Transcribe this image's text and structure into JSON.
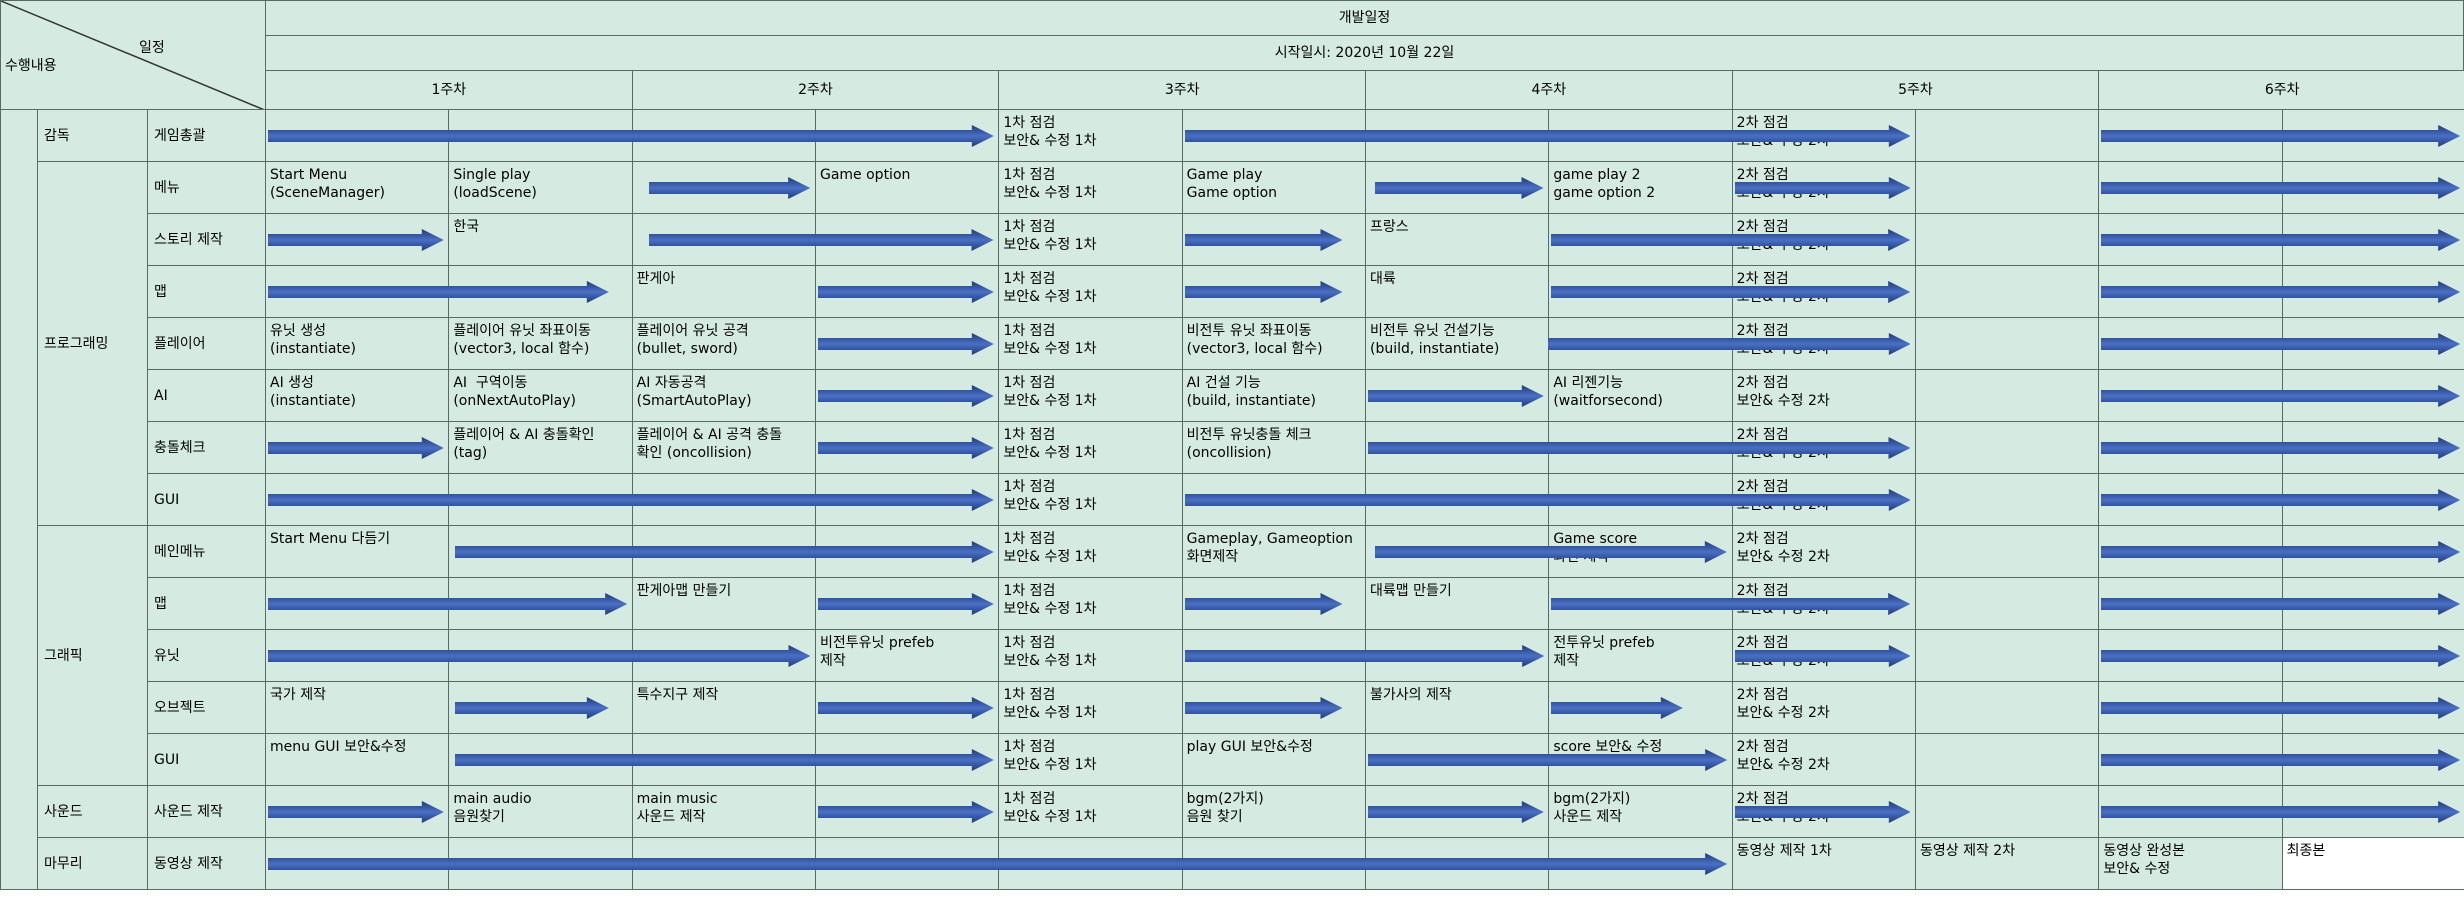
{
  "header": {
    "corner_task": "수행내용",
    "corner_schedule": "일정",
    "title": "개발일정",
    "start_date": "시작일시: 2020년 10월 22일",
    "weeks": [
      "1주차",
      "2주차",
      "3주차",
      "4주차",
      "5주차",
      "6주차"
    ]
  },
  "colors": {
    "cell_bg": "#d5ebe1",
    "grid": "#5a6a64",
    "arrow_dark": "#1f3b7a",
    "arrow_light": "#4a6fc4"
  },
  "groups": [
    {
      "label": "감독",
      "rows": 1
    },
    {
      "label": "프로그래밍",
      "rows": 7
    },
    {
      "label": "그래픽",
      "rows": 5
    },
    {
      "label": "사운드",
      "rows": 1
    },
    {
      "label": "마무리",
      "rows": 1
    }
  ],
  "rows": [
    {
      "label": "게임총괄",
      "tasks": [
        {
          "col": 4,
          "text": "1차 점검\n보안& 수정 1차"
        },
        {
          "col": 8,
          "text": "2차 점검\n보안& 수정 2차"
        }
      ],
      "arrows": [
        [
          0,
          3.97
        ],
        [
          5,
          8.97
        ],
        [
          10,
          11.97
        ]
      ]
    },
    {
      "label": "메뉴",
      "tasks": [
        {
          "col": 0,
          "text": "Start Menu\n(SceneManager)"
        },
        {
          "col": 1,
          "text": "Single play\n(loadScene)"
        },
        {
          "col": 3,
          "text": "Game option"
        },
        {
          "col": 4,
          "text": "1차 점검\n보안& 수정 1차"
        },
        {
          "col": 5,
          "text": "Game play\nGame option"
        },
        {
          "col": 7,
          "text": "game play 2\ngame option 2"
        },
        {
          "col": 8,
          "text": "2차 점검\n보안& 수정 2차"
        }
      ],
      "arrows": [
        [
          2.08,
          2.97
        ],
        [
          6.04,
          6.97
        ],
        [
          8,
          8.97
        ],
        [
          10,
          11.97
        ]
      ]
    },
    {
      "label": "스토리 제작",
      "tasks": [
        {
          "col": 1,
          "text": "한국"
        },
        {
          "col": 4,
          "text": "1차 점검\n보안& 수정 1차"
        },
        {
          "col": 6,
          "text": "프랑스"
        },
        {
          "col": 8,
          "text": "2차 점검\n보안& 수정 2차"
        }
      ],
      "arrows": [
        [
          0,
          0.97
        ],
        [
          2.08,
          3.97
        ],
        [
          5,
          5.87
        ],
        [
          7,
          8.97
        ],
        [
          10,
          11.97
        ]
      ]
    },
    {
      "label": "맵",
      "tasks": [
        {
          "col": 2,
          "text": "판게아"
        },
        {
          "col": 4,
          "text": "1차 점검\n보안& 수정 1차"
        },
        {
          "col": 6,
          "text": "대륙"
        },
        {
          "col": 8,
          "text": "2차 점검\n보안& 수정 2차"
        }
      ],
      "arrows": [
        [
          0,
          1.87
        ],
        [
          3,
          3.97
        ],
        [
          5,
          5.87
        ],
        [
          7,
          8.97
        ],
        [
          10,
          11.97
        ]
      ]
    },
    {
      "label": "플레이어",
      "tasks": [
        {
          "col": 0,
          "text": "유닛 생성\n(instantiate)"
        },
        {
          "col": 1,
          "text": "플레이어 유닛 좌표이동\n(vector3, local 함수)"
        },
        {
          "col": 2,
          "text": "플레이어 유닛 공격\n(bullet, sword)"
        },
        {
          "col": 4,
          "text": "1차 점검\n보안& 수정 1차"
        },
        {
          "col": 5,
          "text": "비전투 유닛 좌표이동\n(vector3, local 함수)"
        },
        {
          "col": 6,
          "text": "비전투 유닛 건설기능\n(build, instantiate)"
        },
        {
          "col": 8,
          "text": "2차 점검\n보안& 수정 2차"
        }
      ],
      "arrows": [
        [
          3,
          3.97
        ],
        [
          6.98,
          8.97
        ],
        [
          10,
          11.97
        ]
      ]
    },
    {
      "label": "AI",
      "tasks": [
        {
          "col": 0,
          "text": "AI 생성\n(instantiate)"
        },
        {
          "col": 1,
          "text": "AI  구역이동\n(onNextAutoPlay)"
        },
        {
          "col": 2,
          "text": "AI 자동공격\n(SmartAutoPlay)"
        },
        {
          "col": 4,
          "text": "1차 점검\n보안& 수정 1차"
        },
        {
          "col": 5,
          "text": "AI 건설 기능\n(build, instantiate)"
        },
        {
          "col": 7,
          "text": "AI 리젠기능\n(waitforsecond)"
        },
        {
          "col": 8,
          "text": "2차 점검\n보안& 수정 2차"
        }
      ],
      "arrows": [
        [
          3,
          3.97
        ],
        [
          6,
          6.97
        ],
        [
          10,
          11.97
        ]
      ]
    },
    {
      "label": "충돌체크",
      "tasks": [
        {
          "col": 1,
          "text": "플레이어 & AI 충돌확인\n(tag)"
        },
        {
          "col": 2,
          "text": "플레이어 & AI 공격 충돌\n확인 (oncollision)"
        },
        {
          "col": 4,
          "text": "1차 점검\n보안& 수정 1차"
        },
        {
          "col": 5,
          "text": "비전투 유닛충돌 체크\n(oncollision)"
        },
        {
          "col": 8,
          "text": "2차 점검\n보안& 수정 2차"
        }
      ],
      "arrows": [
        [
          0,
          0.97
        ],
        [
          3,
          3.97
        ],
        [
          6,
          8.97
        ],
        [
          10,
          11.97
        ]
      ]
    },
    {
      "label": "GUI",
      "tasks": [
        {
          "col": 4,
          "text": "1차 점검\n보안& 수정 1차"
        },
        {
          "col": 8,
          "text": "2차 점검\n보안& 수정 2차"
        }
      ],
      "arrows": [
        [
          0,
          3.97
        ],
        [
          5,
          8.97
        ],
        [
          10,
          11.97
        ]
      ]
    },
    {
      "label": "메인메뉴",
      "tasks": [
        {
          "col": 0,
          "text": "Start Menu 다듬기"
        },
        {
          "col": 4,
          "text": "1차 점검\n보안& 수정 1차"
        },
        {
          "col": 5,
          "text": "Gameplay, Gameoption\n화면제작"
        },
        {
          "col": 7,
          "text": "Game score\n화면 제작"
        },
        {
          "col": 8,
          "text": "2차 점검\n보안& 수정 2차"
        }
      ],
      "arrows": [
        [
          1.02,
          3.97
        ],
        [
          6.04,
          7.97
        ],
        [
          10,
          11.97
        ]
      ]
    },
    {
      "label": "맵",
      "tasks": [
        {
          "col": 2,
          "text": "판게아맵 만들기"
        },
        {
          "col": 4,
          "text": "1차 점검\n보안& 수정 1차"
        },
        {
          "col": 6,
          "text": "대륙맵 만들기"
        },
        {
          "col": 8,
          "text": "2차 점검\n보안& 수정 2차"
        }
      ],
      "arrows": [
        [
          0,
          1.97
        ],
        [
          3,
          3.97
        ],
        [
          5,
          5.87
        ],
        [
          7,
          8.97
        ],
        [
          10,
          11.97
        ]
      ]
    },
    {
      "label": "유닛",
      "tasks": [
        {
          "col": 3,
          "text": "비전투유닛 prefeb\n제작"
        },
        {
          "col": 4,
          "text": "1차 점검\n보안& 수정 1차"
        },
        {
          "col": 7,
          "text": "전투유닛 prefeb\n제작"
        },
        {
          "col": 8,
          "text": "2차 점검\n보안& 수정 2차"
        }
      ],
      "arrows": [
        [
          0,
          2.97
        ],
        [
          5,
          6.97
        ],
        [
          8,
          8.97
        ],
        [
          10,
          11.97
        ]
      ]
    },
    {
      "label": "오브젝트",
      "tasks": [
        {
          "col": 0,
          "text": "국가 제작"
        },
        {
          "col": 2,
          "text": "특수지구 제작"
        },
        {
          "col": 4,
          "text": "1차 점검\n보안& 수정 1차"
        },
        {
          "col": 6,
          "text": "불가사의 제작"
        },
        {
          "col": 8,
          "text": "2차 점검\n보안& 수정 2차"
        }
      ],
      "arrows": [
        [
          1.02,
          1.87
        ],
        [
          3,
          3.97
        ],
        [
          5,
          5.87
        ],
        [
          7,
          7.73
        ],
        [
          10,
          11.97
        ]
      ]
    },
    {
      "label": "GUI",
      "tasks": [
        {
          "col": 0,
          "text": "menu GUI 보안&수정"
        },
        {
          "col": 4,
          "text": "1차 점검\n보안& 수정 1차"
        },
        {
          "col": 5,
          "text": "play GUI 보안&수정"
        },
        {
          "col": 7,
          "text": "score 보안& 수정"
        },
        {
          "col": 8,
          "text": "2차 점검\n보안& 수정 2차"
        }
      ],
      "arrows": [
        [
          1.02,
          3.97
        ],
        [
          6,
          7.97
        ],
        [
          10,
          11.97
        ]
      ]
    },
    {
      "label": "사운드 제작",
      "tasks": [
        {
          "col": 1,
          "text": "main audio\n음원찾기"
        },
        {
          "col": 2,
          "text": "main music\n사운드 제작"
        },
        {
          "col": 4,
          "text": "1차 점검\n보안& 수정 1차"
        },
        {
          "col": 5,
          "text": "bgm(2가지)\n음원 찾기"
        },
        {
          "col": 7,
          "text": "bgm(2가지)\n사운드 제작"
        },
        {
          "col": 8,
          "text": "2차 점검\n보안& 수정 2차"
        }
      ],
      "arrows": [
        [
          0,
          0.97
        ],
        [
          3,
          3.97
        ],
        [
          6,
          6.97
        ],
        [
          8,
          8.97
        ],
        [
          10,
          11.97
        ]
      ]
    },
    {
      "label": "동영상 제작",
      "tasks": [
        {
          "col": 8,
          "text": "동영상 제작 1차"
        },
        {
          "col": 9,
          "text": "동영상 제작 2차"
        },
        {
          "col": 10,
          "text": "동영상 완성본\n보안& 수정"
        },
        {
          "col": 11,
          "text": "최종본",
          "white": true
        }
      ],
      "arrows": [
        [
          0,
          7.97
        ]
      ]
    }
  ]
}
